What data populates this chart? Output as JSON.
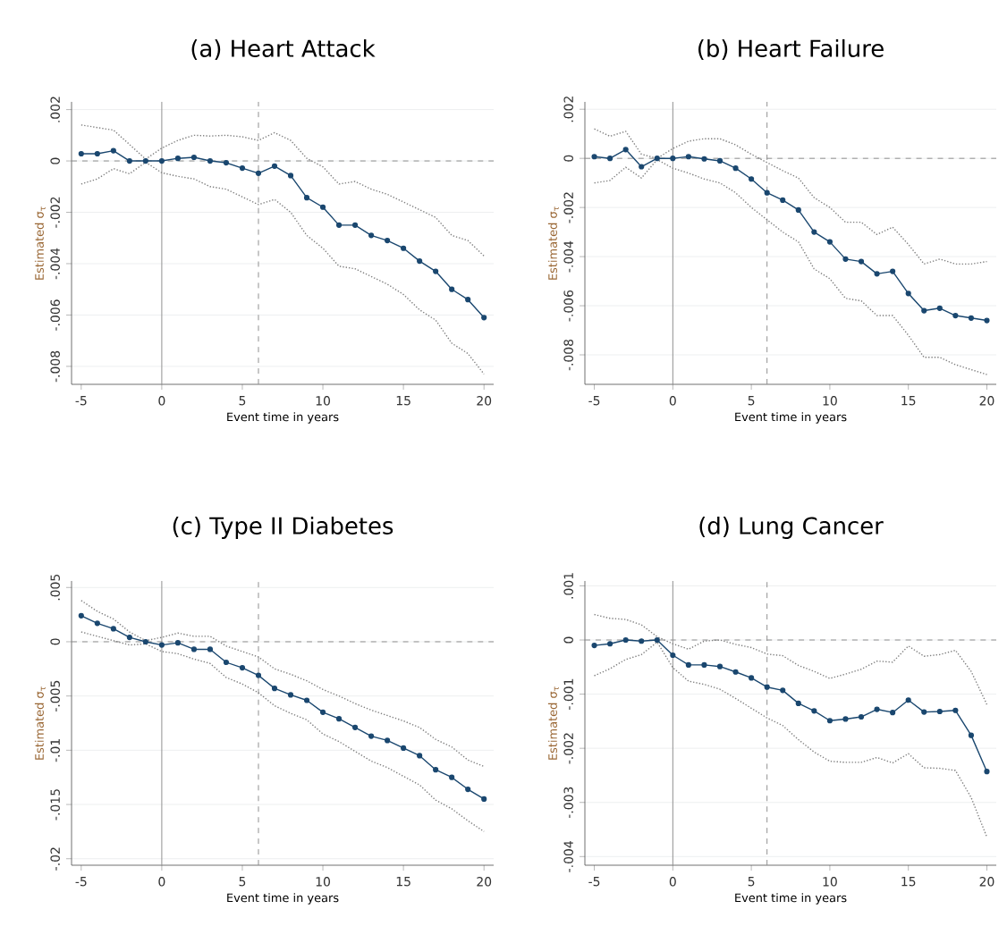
{
  "chart_data": [
    {
      "type": "line",
      "title": "(a) Heart Attack",
      "xlabel": "Event time in years",
      "ylabel": "Estimated σ$_{τ}$",
      "x": [
        -5,
        -4,
        -3,
        -2,
        -1,
        0,
        1,
        2,
        3,
        4,
        5,
        6,
        7,
        8,
        9,
        10,
        11,
        12,
        13,
        14,
        15,
        16,
        17,
        18,
        19,
        20
      ],
      "xlim": [
        -5.6,
        20.6
      ],
      "xticks": [
        -5,
        0,
        5,
        10,
        15,
        20
      ],
      "ylim": [
        -0.0087,
        0.0023
      ],
      "yticks": [
        {
          "value": 0.002,
          "label": ".002"
        },
        0,
        {
          "value": -0.002,
          "label": "-.002"
        },
        {
          "value": -0.004,
          "label": "-.004"
        },
        {
          "value": -0.006,
          "label": "-.006"
        },
        {
          "value": -0.008,
          "label": "-.008"
        }
      ],
      "grid": "y",
      "ref_lines": [
        {
          "axis": "x",
          "value": 0,
          "color": "#909090",
          "line_style": "solid"
        },
        {
          "axis": "x",
          "value": 6,
          "color": "#909090",
          "line_style": "dashed"
        },
        {
          "axis": "y",
          "value": 0,
          "color": "#909090",
          "line_style": "dashed"
        }
      ],
      "series": [
        {
          "color": "#808080",
          "marker": "none",
          "line_style": "dotted",
          "values": [
            0.0014,
            0.0013,
            0.0012,
            0.00064,
            7e-05,
            0.0005,
            0.0008,
            0.001,
            0.00097,
            0.001,
            0.00094,
            0.0008,
            0.0011,
            0.0008,
            0.0001,
            -0.00023,
            -0.0009,
            -0.0008,
            -0.0011,
            -0.0013,
            -0.0016,
            -0.0019,
            -0.0022,
            -0.0029,
            -0.0031,
            -0.0037
          ]
        },
        {
          "color": "#1a476f",
          "marker": "circle",
          "line_style": "solid",
          "values": [
            0.00028,
            0.00028,
            0.0004,
            0,
            0,
            0,
            0.0001,
            0.00014,
            0,
            -7e-05,
            -0.00028,
            -0.00048,
            -0.0002,
            -0.00057,
            -0.00143,
            -0.0018,
            -0.0025,
            -0.0025,
            -0.0029,
            -0.0031,
            -0.0034,
            -0.0039,
            -0.0043,
            -0.005,
            -0.0054,
            -0.0061
          ]
        },
        {
          "color": "#808080",
          "marker": "none",
          "line_style": "dotted",
          "values": [
            -0.0009,
            -0.0007,
            -0.0003,
            -0.0005,
            -5e-05,
            -0.00046,
            -0.0006,
            -0.0007,
            -0.001,
            -0.0011,
            -0.0014,
            -0.0017,
            -0.0015,
            -0.002,
            -0.0029,
            -0.0034,
            -0.0041,
            -0.0042,
            -0.0045,
            -0.0048,
            -0.0052,
            -0.0058,
            -0.0062,
            -0.0071,
            -0.0075,
            -0.0083
          ]
        }
      ]
    },
    {
      "type": "line",
      "title": "(b) Heart Failure",
      "xlabel": "Event time in years",
      "ylabel": "Estimated σ$_{τ}$",
      "x": [
        -5,
        -4,
        -3,
        -2,
        -1,
        0,
        1,
        2,
        3,
        4,
        5,
        6,
        7,
        8,
        9,
        10,
        11,
        12,
        13,
        14,
        15,
        16,
        17,
        18,
        19,
        20
      ],
      "xlim": [
        -5.6,
        20.6
      ],
      "xticks": [
        -5,
        0,
        5,
        10,
        15,
        20
      ],
      "ylim": [
        -0.0092,
        0.0023
      ],
      "yticks": [
        {
          "value": 0.002,
          "label": ".002"
        },
        0,
        {
          "value": -0.002,
          "label": "-.002"
        },
        {
          "value": -0.004,
          "label": "-.004"
        },
        {
          "value": -0.006,
          "label": "-.006"
        },
        {
          "value": -0.008,
          "label": "-.008"
        }
      ],
      "grid": "y",
      "ref_lines": [
        {
          "axis": "x",
          "value": 0,
          "color": "#909090",
          "line_style": "solid"
        },
        {
          "axis": "x",
          "value": 6,
          "color": "#909090",
          "line_style": "dashed"
        },
        {
          "axis": "y",
          "value": 0,
          "color": "#909090",
          "line_style": "dashed"
        }
      ],
      "series": [
        {
          "color": "#808080",
          "marker": "none",
          "line_style": "dotted",
          "values": [
            0.0012,
            0.0009,
            0.0011,
            0.00017,
            0,
            0.0004,
            0.0007,
            0.0008,
            0.0008,
            0.00055,
            0.00017,
            -0.00017,
            -0.0005,
            -0.0008,
            -0.0016,
            -0.002,
            -0.0026,
            -0.0026,
            -0.0031,
            -0.0028,
            -0.0035,
            -0.0043,
            -0.0041,
            -0.0043,
            -0.0043,
            -0.0042
          ]
        },
        {
          "color": "#1a476f",
          "marker": "circle",
          "line_style": "solid",
          "values": [
            7e-05,
            0,
            0.00036,
            -0.00034,
            0,
            0,
            7e-05,
            -2e-05,
            -0.0001,
            -0.0004,
            -0.00084,
            -0.0014,
            -0.0017,
            -0.0021,
            -0.003,
            -0.0034,
            -0.0041,
            -0.0042,
            -0.0047,
            -0.0046,
            -0.0055,
            -0.0062,
            -0.0061,
            -0.0064,
            -0.0065,
            -0.0066
          ]
        },
        {
          "color": "#808080",
          "marker": "none",
          "line_style": "dotted",
          "values": [
            -0.001,
            -0.0009,
            -0.00036,
            -0.0008,
            -5e-05,
            -0.0004,
            -0.0006,
            -0.00084,
            -0.001,
            -0.0014,
            -0.002,
            -0.0025,
            -0.003,
            -0.0034,
            -0.0045,
            -0.0049,
            -0.0057,
            -0.0058,
            -0.0064,
            -0.0064,
            -0.0072,
            -0.0081,
            -0.0081,
            -0.0084,
            -0.0086,
            -0.0088
          ]
        }
      ]
    },
    {
      "type": "line",
      "title": "(c) Type II Diabetes",
      "xlabel": "Event time in years",
      "ylabel": "Estimated σ$_{τ}$",
      "x": [
        -5,
        -4,
        -3,
        -2,
        -1,
        0,
        1,
        2,
        3,
        4,
        5,
        6,
        7,
        8,
        9,
        10,
        11,
        12,
        13,
        14,
        15,
        16,
        17,
        18,
        19,
        20
      ],
      "xlim": [
        -5.6,
        20.6
      ],
      "xticks": [
        -5,
        0,
        5,
        10,
        15,
        20
      ],
      "ylim": [
        -0.0206,
        0.0056
      ],
      "yticks": [
        {
          "value": 0.005,
          "label": ".005"
        },
        0,
        {
          "value": -0.005,
          "label": "-.005"
        },
        {
          "value": -0.01,
          "label": "-.01"
        },
        {
          "value": -0.015,
          "label": "-.015"
        },
        {
          "value": -0.02,
          "label": "-.02"
        }
      ],
      "grid": "y",
      "ref_lines": [
        {
          "axis": "x",
          "value": 0,
          "color": "#909090",
          "line_style": "solid"
        },
        {
          "axis": "x",
          "value": 6,
          "color": "#909090",
          "line_style": "dashed"
        },
        {
          "axis": "y",
          "value": 0,
          "color": "#909090",
          "line_style": "dashed"
        }
      ],
      "series": [
        {
          "color": "#808080",
          "marker": "none",
          "line_style": "dotted",
          "values": [
            0.0038,
            0.0028,
            0.0021,
            0.0009,
            0.0001,
            0.0004,
            0.0008,
            0.0005,
            0.0005,
            -0.0004,
            -0.0009,
            -0.0014,
            -0.0025,
            -0.003,
            -0.0036,
            -0.0044,
            -0.005,
            -0.0057,
            -0.0063,
            -0.0068,
            -0.0073,
            -0.0079,
            -0.009,
            -0.0097,
            -0.0109,
            -0.0115
          ]
        },
        {
          "color": "#1a476f",
          "marker": "circle",
          "line_style": "solid",
          "values": [
            0.0024,
            0.0017,
            0.0012,
            0.0004,
            0,
            -0.0003,
            -0.0001,
            -0.0007,
            -0.0007,
            -0.0019,
            -0.0024,
            -0.0031,
            -0.0043,
            -0.0049,
            -0.0054,
            -0.0065,
            -0.0071,
            -0.0079,
            -0.0087,
            -0.0091,
            -0.0098,
            -0.0105,
            -0.0118,
            -0.0125,
            -0.0136,
            -0.0145
          ]
        },
        {
          "color": "#808080",
          "marker": "none",
          "line_style": "dotted",
          "values": [
            0.0009,
            0.0005,
            0.0001,
            -0.0003,
            -0.0002,
            -0.0009,
            -0.0011,
            -0.0016,
            -0.002,
            -0.0033,
            -0.0039,
            -0.0047,
            -0.0059,
            -0.0066,
            -0.0072,
            -0.0085,
            -0.0092,
            -0.0101,
            -0.011,
            -0.0116,
            -0.0124,
            -0.0132,
            -0.0146,
            -0.0154,
            -0.0165,
            -0.0175
          ]
        }
      ]
    },
    {
      "type": "line",
      "title": "(d) Lung Cancer",
      "xlabel": "Event time in years",
      "ylabel": "Estimated σ$_{τ}$",
      "x": [
        -5,
        -4,
        -3,
        -2,
        -1,
        0,
        1,
        2,
        3,
        4,
        5,
        6,
        7,
        8,
        9,
        10,
        11,
        12,
        13,
        14,
        15,
        16,
        17,
        18,
        19,
        20
      ],
      "xlim": [
        -5.6,
        20.6
      ],
      "xticks": [
        -5,
        0,
        5,
        10,
        15,
        20
      ],
      "ylim": [
        -0.00416,
        0.00109
      ],
      "yticks": [
        {
          "value": 0.001,
          "label": ".001"
        },
        0,
        {
          "value": -0.001,
          "label": "-.001"
        },
        {
          "value": -0.002,
          "label": "-.002"
        },
        {
          "value": -0.003,
          "label": "-.003"
        },
        {
          "value": -0.004,
          "label": "-.004"
        }
      ],
      "grid": "y",
      "ref_lines": [
        {
          "axis": "x",
          "value": 0,
          "color": "#909090",
          "line_style": "solid"
        },
        {
          "axis": "x",
          "value": 6,
          "color": "#909090",
          "line_style": "dashed"
        },
        {
          "axis": "y",
          "value": 0,
          "color": "#909090",
          "line_style": "dashed"
        }
      ],
      "series": [
        {
          "color": "#808080",
          "marker": "none",
          "line_style": "dotted",
          "values": [
            0.00047,
            0.0004,
            0.00038,
            0.00028,
            6e-05,
            -7e-05,
            -0.00017,
            -2e-05,
            0,
            -8e-05,
            -0.00014,
            -0.00026,
            -0.00029,
            -0.00047,
            -0.00058,
            -0.00071,
            -0.00063,
            -0.00054,
            -0.00039,
            -0.00041,
            -0.00011,
            -0.0003,
            -0.00027,
            -0.00019,
            -0.00058,
            -0.00119
          ]
        },
        {
          "color": "#1a476f",
          "marker": "circle",
          "line_style": "solid",
          "values": [
            -0.0001,
            -7e-05,
            0,
            -2e-05,
            0,
            -0.00028,
            -0.00046,
            -0.00046,
            -0.00049,
            -0.00059,
            -0.0007,
            -0.00087,
            -0.00093,
            -0.00117,
            -0.00131,
            -0.00149,
            -0.00146,
            -0.00142,
            -0.00128,
            -0.00134,
            -0.00111,
            -0.00133,
            -0.00132,
            -0.0013,
            -0.00176,
            -0.00243
          ]
        },
        {
          "color": "#808080",
          "marker": "none",
          "line_style": "dotted",
          "values": [
            -0.00066,
            -0.00053,
            -0.00036,
            -0.00027,
            -4e-05,
            -0.00051,
            -0.00076,
            -0.00082,
            -0.00091,
            -0.00108,
            -0.00126,
            -0.00144,
            -0.00158,
            -0.00184,
            -0.00207,
            -0.00224,
            -0.00226,
            -0.00226,
            -0.00217,
            -0.00227,
            -0.0021,
            -0.00236,
            -0.00237,
            -0.00241,
            -0.00291,
            -0.00364
          ]
        }
      ]
    }
  ]
}
